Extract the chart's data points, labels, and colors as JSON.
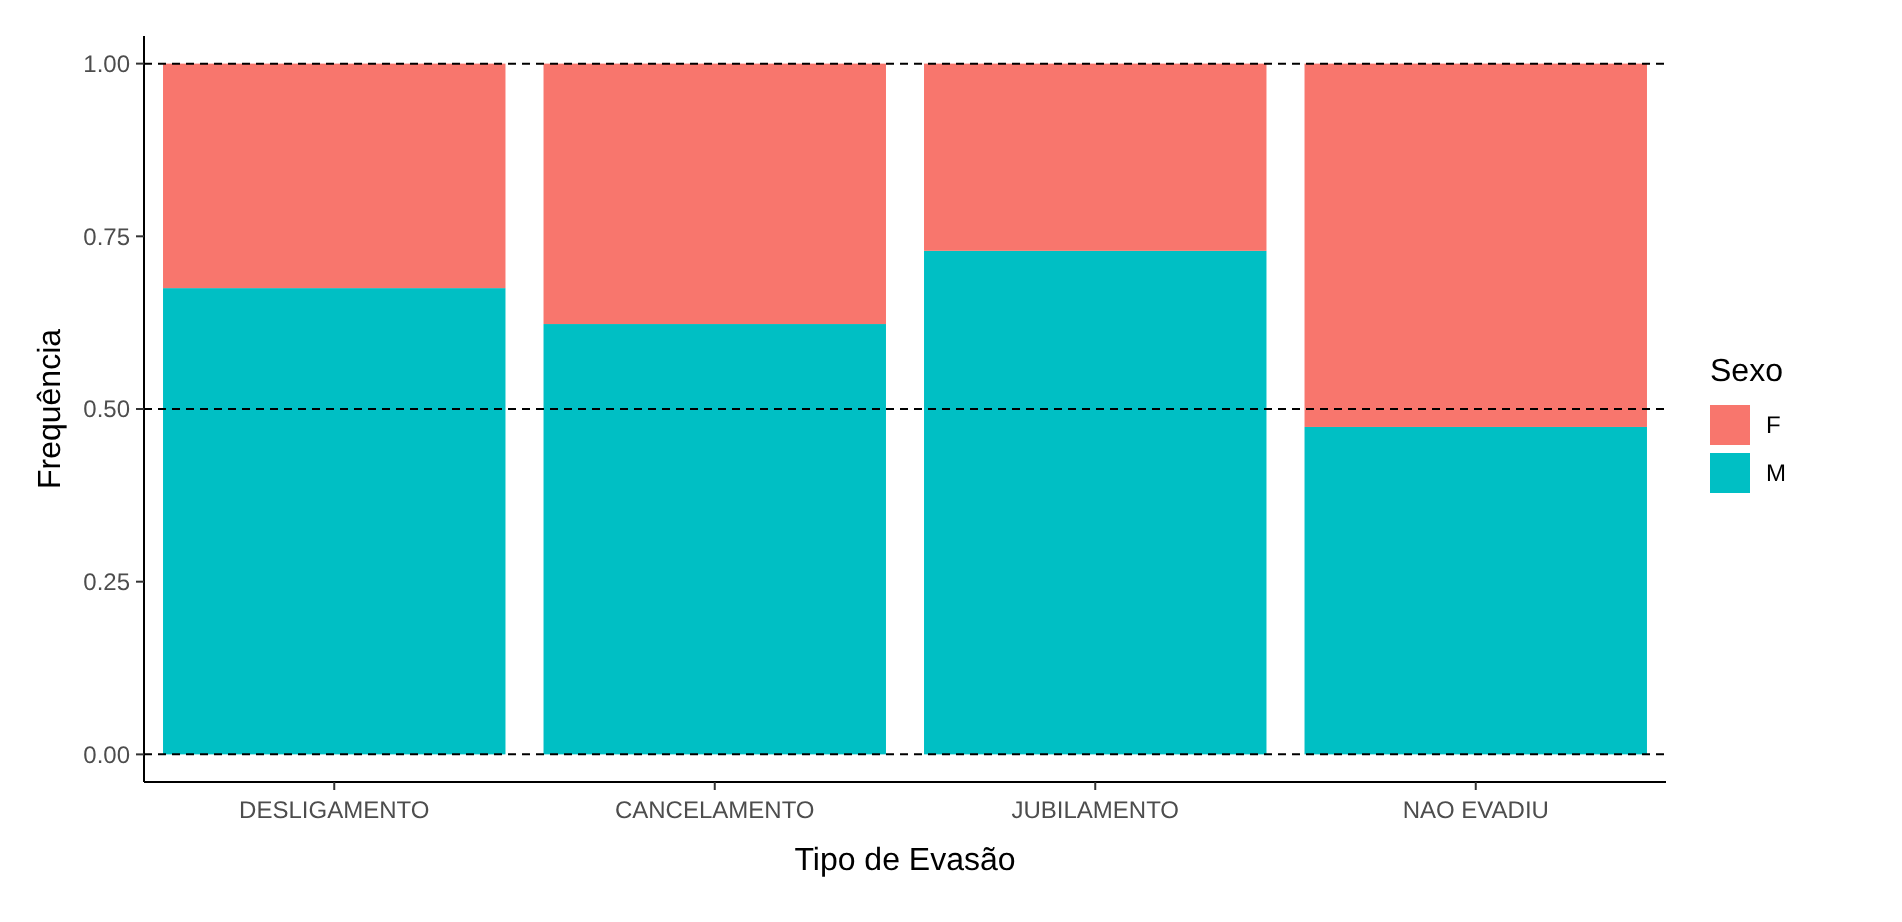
{
  "chart_data": {
    "type": "bar",
    "stacked": true,
    "xlabel": "Tipo de Evasão",
    "ylabel": "Frequência",
    "legend_title": "Sexo",
    "legend": "right",
    "categories": [
      "DESLIGAMENTO",
      "CANCELAMENTO",
      "JUBILAMENTO",
      "NAO EVADIU"
    ],
    "series": [
      {
        "name": "M",
        "color": "#00bfc4",
        "values": [
          0.675,
          0.623,
          0.729,
          0.474
        ]
      },
      {
        "name": "F",
        "color": "#f8766d",
        "values": [
          0.325,
          0.377,
          0.271,
          0.526
        ]
      }
    ],
    "ylim": [
      -0.04,
      1.04
    ],
    "yticks": [
      {
        "value": 0,
        "label": "0.00"
      },
      {
        "value": 0.25,
        "label": "0.25"
      },
      {
        "value": 0.5,
        "label": "0.50"
      },
      {
        "value": 0.75,
        "label": "0.75"
      },
      {
        "value": 1,
        "label": "1.00"
      }
    ],
    "grid": false,
    "ref_lines": [
      {
        "axis": "y",
        "value": 0,
        "line_style": "dashed",
        "color": "#000000"
      },
      {
        "axis": "y",
        "value": 0.5,
        "line_style": "dashed",
        "color": "#000000"
      },
      {
        "axis": "y",
        "value": 1,
        "line_style": "dashed",
        "color": "#000000"
      }
    ]
  }
}
